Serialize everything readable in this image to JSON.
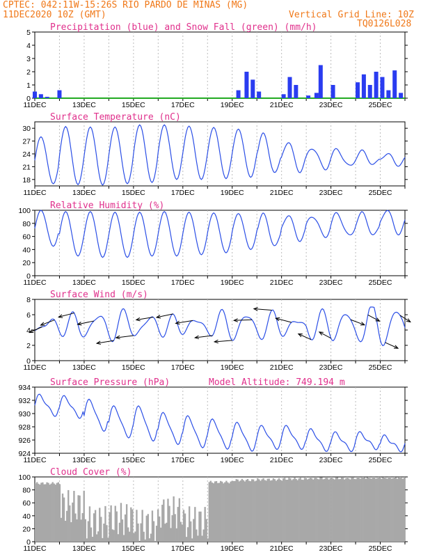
{
  "header": {
    "station": "CPTEC:  042:11W-15:26S  RIO PARDO DE MINAS (MG)",
    "date": "11DEC2020 10Z (GMT)",
    "grid_line": "Vertical Grid Line: 10Z",
    "code": "TQ0126L028"
  },
  "colors": {
    "precip": "#2a3cf0",
    "snow": "#22aa22",
    "line": "#2a4ee6",
    "arrow": "#000000",
    "cloud": "#a8a8a8",
    "title": "#e0308c",
    "header": "#f07818"
  },
  "x_ticks": [
    "11DEC",
    "13DEC",
    "15DEC",
    "17DEC",
    "19DEC",
    "21DEC",
    "23DEC",
    "25DEC"
  ],
  "chart_data": [
    {
      "type": "bar",
      "id": "precip",
      "title": "Precipitation (blue) and Snow Fall (green) (mm/h)",
      "ylim": [
        0,
        5
      ],
      "yticks": [
        0,
        1,
        2,
        3,
        4,
        5
      ],
      "x": [
        "11DEC 10Z",
        "11DEC 16Z",
        "11DEC 22Z",
        "12DEC 10Z",
        "19DEC 16Z",
        "20DEC 00Z",
        "20DEC 06Z",
        "20DEC 12Z",
        "21DEC 12Z",
        "21DEC 18Z",
        "22DEC 00Z",
        "22DEC 12Z",
        "22DEC 20Z",
        "23DEC 00Z",
        "23DEC 12Z",
        "24DEC 12Z",
        "24DEC 18Z",
        "25DEC 00Z",
        "25DEC 06Z",
        "25DEC 12Z",
        "25DEC 18Z",
        "26DEC 00Z",
        "26DEC 06Z"
      ],
      "values": [
        0.5,
        0.3,
        0.1,
        0.6,
        0.6,
        2.0,
        1.4,
        0.5,
        0.3,
        1.6,
        1.0,
        0.2,
        0.4,
        2.5,
        1.0,
        1.2,
        1.8,
        1.0,
        2.0,
        1.6,
        0.6,
        2.1,
        0.4
      ],
      "snow": []
    },
    {
      "type": "line",
      "id": "temperature",
      "title": "Surface Temperature (nC)",
      "ylim": [
        16.5,
        31.5
      ],
      "yticks": [
        18,
        21,
        24,
        27,
        30
      ],
      "series": [
        {
          "maxima": [
            28,
            30.4,
            30.3,
            30.3,
            30.8,
            30.8,
            30.5,
            30.2,
            29.8,
            28.5,
            26.7,
            25.5,
            25.0,
            24.5,
            24.0
          ],
          "minima": [
            17,
            16.8,
            16.7,
            17.0,
            17.3,
            18.0,
            18.0,
            18.2,
            18.5,
            19.5,
            20.0,
            20.5,
            21.0,
            21.5,
            21.5
          ]
        }
      ]
    },
    {
      "type": "line",
      "id": "humidity",
      "title": "Relative Humidity (%)",
      "ylim": [
        0,
        100
      ],
      "yticks": [
        0,
        20,
        40,
        60,
        80,
        100
      ],
      "series": [
        {
          "maxima": [
            100,
            98,
            98,
            97,
            97,
            98,
            97,
            96,
            95,
            93,
            92,
            92,
            95,
            95,
            100
          ],
          "minima": [
            45,
            30,
            28,
            28,
            30,
            30,
            32,
            35,
            40,
            45,
            55,
            60,
            60,
            62,
            65
          ]
        }
      ]
    },
    {
      "type": "line",
      "id": "wind",
      "title": "Surface Wind (m/s)",
      "ylim": [
        0,
        8
      ],
      "yticks": [
        0,
        2,
        4,
        6,
        8
      ],
      "speed_range": [
        1.0,
        7.0
      ],
      "arrows": [
        {
          "day": 0.3,
          "dir": 225
        },
        {
          "day": 0.8,
          "dir": 230
        },
        {
          "day": 1.6,
          "dir": 240
        },
        {
          "day": 2.4,
          "dir": 245
        },
        {
          "day": 3.2,
          "dir": 250
        },
        {
          "day": 4.0,
          "dir": 255
        },
        {
          "day": 4.8,
          "dir": 250
        },
        {
          "day": 5.6,
          "dir": 245
        },
        {
          "day": 6.4,
          "dir": 250
        },
        {
          "day": 7.2,
          "dir": 255
        },
        {
          "day": 8.0,
          "dir": 260
        },
        {
          "day": 8.8,
          "dir": 265
        },
        {
          "day": 9.6,
          "dir": 280
        },
        {
          "day": 10.4,
          "dir": 300
        },
        {
          "day": 11.2,
          "dir": 315
        },
        {
          "day": 12.0,
          "dir": 320
        },
        {
          "day": 12.8,
          "dir": 130
        },
        {
          "day": 13.5,
          "dir": 140
        },
        {
          "day": 14.2,
          "dir": 135
        },
        {
          "day": 14.8,
          "dir": 145
        }
      ]
    },
    {
      "type": "line",
      "id": "pressure",
      "title": "Surface Pressure (hPa)",
      "subtitle": "Model Altitude: 749.194 m",
      "ylim": [
        924,
        934
      ],
      "yticks": [
        924,
        926,
        928,
        930,
        932,
        934
      ],
      "series": [
        {
          "maxima": [
            932.7,
            932.5,
            932.0,
            931.0,
            931.0,
            930.0,
            929.5,
            929.0,
            928.5,
            928.0,
            928.0,
            927.5,
            927.0,
            927.0,
            926.5
          ],
          "minima": [
            929.8,
            929.5,
            927.5,
            926.5,
            926.0,
            925.5,
            925.0,
            924.8,
            924.5,
            924.8,
            924.8,
            924.5,
            924.5,
            924.8,
            924.5
          ]
        }
      ]
    },
    {
      "type": "bar",
      "id": "cloud",
      "title": "Cloud Cover (%)",
      "ylim": [
        0,
        100
      ],
      "yticks": [
        0,
        20,
        40,
        60,
        80,
        100
      ],
      "levels": [
        90,
        55,
        30,
        35,
        25,
        45,
        30,
        92,
        95,
        96,
        97,
        98,
        98,
        99,
        99
      ]
    }
  ]
}
